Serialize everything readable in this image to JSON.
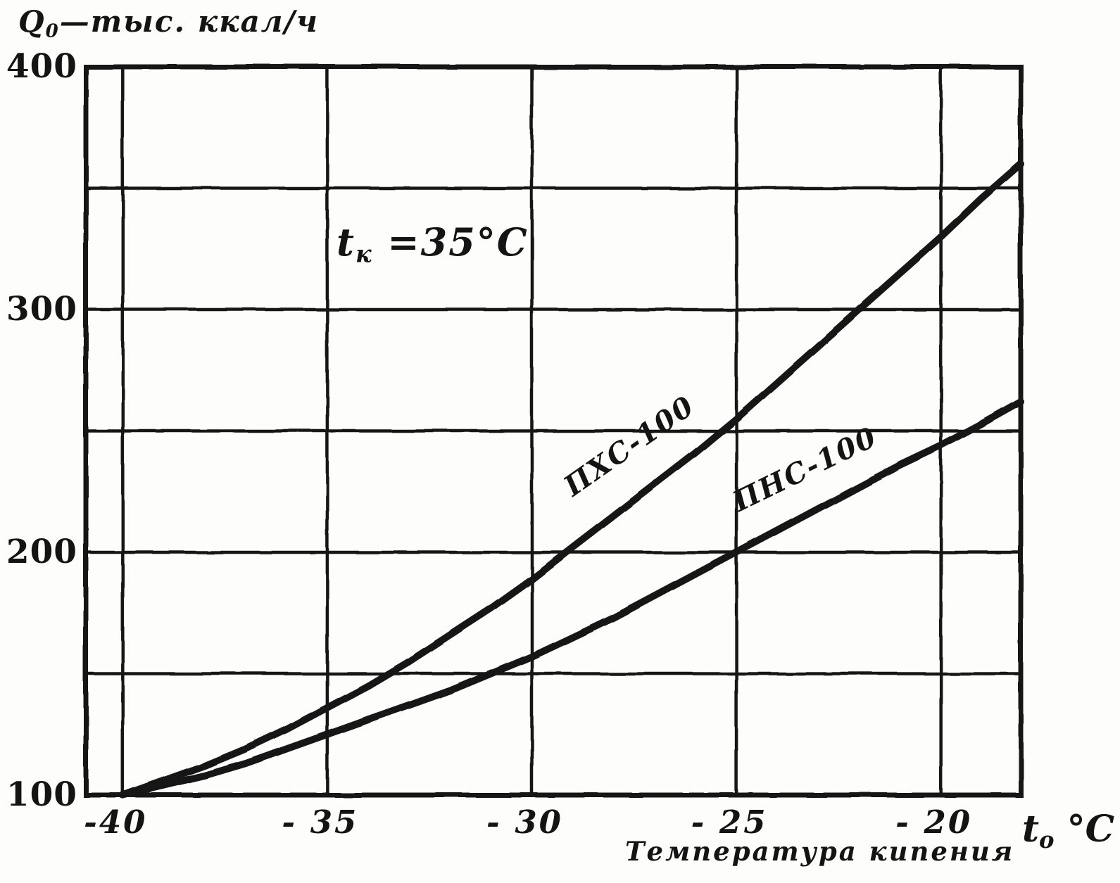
{
  "chart_data": {
    "type": "line",
    "title": "Q0 — тыс. ккал/ч",
    "xlabel": "Температура кипения",
    "x_axis_unit": "to °C",
    "annotation": "tк =35°C",
    "ink_color": "#161616",
    "xlim": [
      -40.9,
      -18.05
    ],
    "ylim": [
      100,
      400
    ],
    "grid": true,
    "x_ticks": [
      -40,
      -35,
      -30,
      -25,
      -20
    ],
    "x_tick_labels": [
      "-40",
      "- 35",
      "- 30",
      "- 25",
      "- 20"
    ],
    "y_tick_values": [
      400,
      300,
      200,
      100
    ],
    "y_tick_labels": [
      "400",
      "300",
      "200",
      "100"
    ],
    "y_gridlines": [
      100,
      150,
      200,
      250,
      300,
      350,
      400
    ],
    "x": [
      -40,
      -39,
      -38,
      -37,
      -36,
      -35,
      -34,
      -33,
      -32,
      -31,
      -30,
      -29,
      -28,
      -27,
      -26,
      -25,
      -24,
      -23,
      -22,
      -21,
      -20,
      -19,
      -18.05
    ],
    "series": [
      {
        "name": "ПХС-100",
        "values": [
          100,
          106,
          112,
          119,
          127,
          136,
          145,
          155,
          166,
          177,
          189,
          202,
          215,
          228,
          241,
          255,
          270,
          285,
          300,
          315,
          330,
          346,
          360
        ]
      },
      {
        "name": "ПНС-100",
        "values": [
          100,
          104,
          108,
          113,
          119,
          125,
          131,
          137,
          143,
          150,
          157,
          165,
          173,
          182,
          191,
          200,
          209,
          218,
          227,
          236,
          244,
          253,
          262
        ]
      }
    ]
  },
  "labels": {
    "title": {
      "main": "Q",
      "sub": "0",
      "rest": "—тыс. ккал/ч"
    },
    "annotation": {
      "main": "t",
      "sub": "к",
      "rest": " =35°C"
    },
    "unit": {
      "main": "t",
      "sub": "o",
      "rest": " °C"
    },
    "x_caption": "Температура кипения"
  }
}
